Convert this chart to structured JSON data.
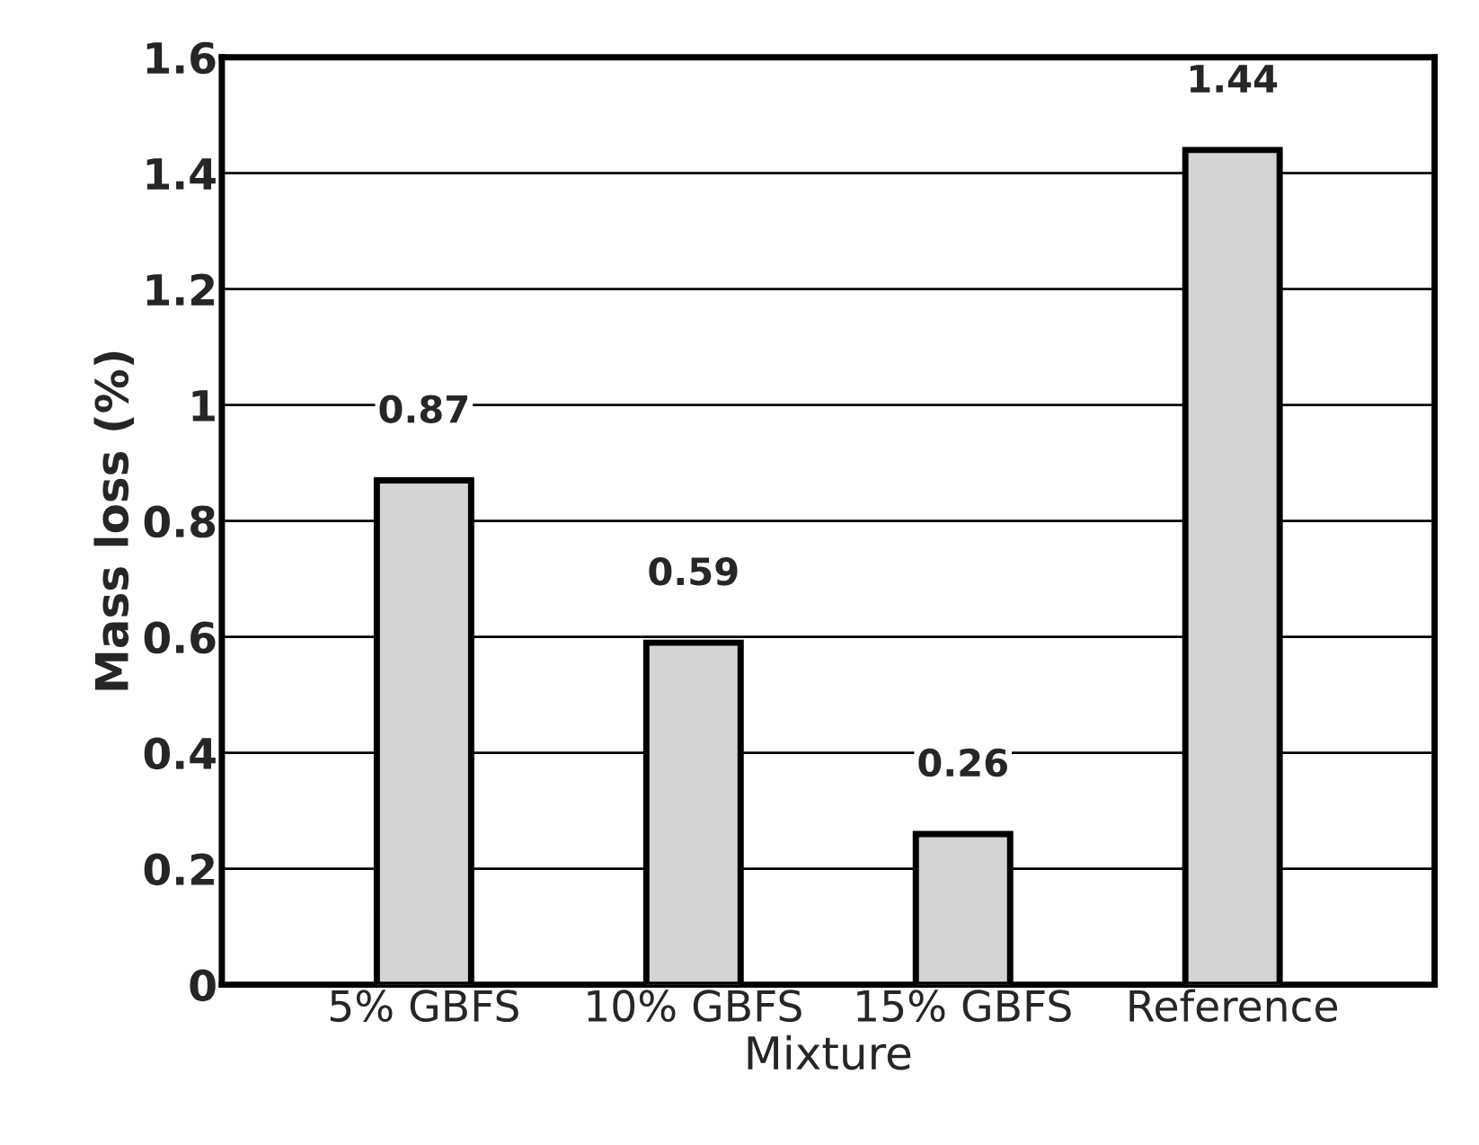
{
  "chart_data": {
    "type": "bar",
    "xlabel": "Mixture",
    "ylabel": "Mass loss (%)",
    "categories": [
      "5% GBFS",
      "10% GBFS",
      "15% GBFS",
      "Reference"
    ],
    "values": [
      0.87,
      0.59,
      0.26,
      1.44
    ],
    "color": "#d4d4d4",
    "ylim": [
      0,
      1.6
    ],
    "yticks": [
      0,
      0.2,
      0.4,
      0.6,
      0.8,
      1,
      1.2,
      1.4,
      1.6
    ],
    "grid": "y",
    "data_labels": true
  }
}
